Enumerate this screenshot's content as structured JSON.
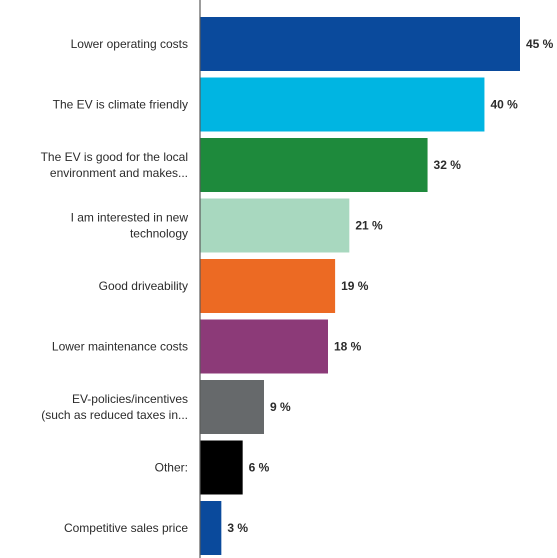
{
  "chart_data": {
    "type": "bar",
    "orientation": "horizontal",
    "unit": "%",
    "grid": false,
    "xlim": [
      0,
      45
    ],
    "categories": [
      [
        "Lower operating costs"
      ],
      [
        "The EV is climate friendly"
      ],
      [
        "The EV is good for the local",
        "environment and makes..."
      ],
      [
        "I am interested in new",
        "technology"
      ],
      [
        "Good driveability"
      ],
      [
        "Lower maintenance costs"
      ],
      [
        "EV-policies/incentives",
        "(such as reduced taxes in..."
      ],
      [
        "Other:"
      ],
      [
        "Competitive sales price"
      ]
    ],
    "values": [
      45,
      40,
      32,
      21,
      19,
      18,
      9,
      6,
      3
    ],
    "value_labels": [
      "45 %",
      "40 %",
      "32 %",
      "21 %",
      "19 %",
      "18 %",
      "9 %",
      "6 %",
      "3 %"
    ],
    "colors": [
      "#0a4a9c",
      "#00b5e2",
      "#1e8a3c",
      "#a8d8bf",
      "#ec6a23",
      "#8c3a78",
      "#66696b",
      "#000000",
      "#0a4a9c"
    ]
  }
}
